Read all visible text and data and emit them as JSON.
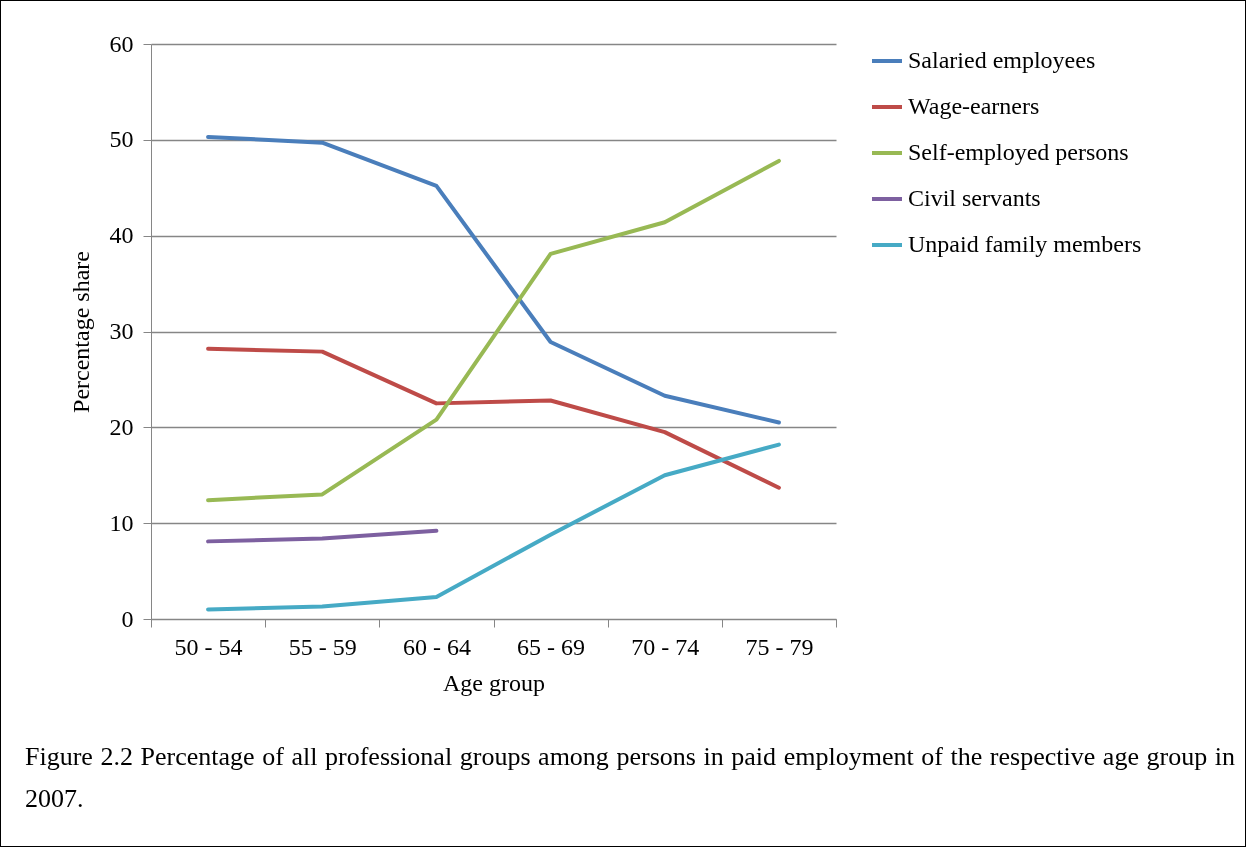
{
  "chart_data": {
    "type": "line",
    "xlabel": "Age group",
    "ylabel": "Percentage share",
    "categories": [
      "50 - 54",
      "55 - 59",
      "60 - 64",
      "65 - 69",
      "70 - 74",
      "75 - 79"
    ],
    "series": [
      {
        "name": "Salaried employees",
        "color": "#4a7ebb",
        "values": [
          50.3,
          49.7,
          45.2,
          28.9,
          23.3,
          20.5
        ]
      },
      {
        "name": "Wage-earners",
        "color": "#be4b48",
        "values": [
          28.2,
          27.9,
          22.5,
          22.8,
          19.5,
          13.7
        ]
      },
      {
        "name": "Self-employed persons",
        "color": "#98b954",
        "values": [
          12.4,
          13.0,
          20.8,
          38.1,
          41.4,
          47.8
        ]
      },
      {
        "name": "Civil servants",
        "color": "#7d60a0",
        "values": [
          8.1,
          8.4,
          9.2,
          null,
          null,
          null
        ]
      },
      {
        "name": "Unpaid family members",
        "color": "#46aac5",
        "values": [
          1.0,
          1.3,
          2.3,
          8.8,
          15.0,
          18.2
        ]
      }
    ],
    "ylim": [
      0,
      60
    ],
    "yticks": [
      0,
      10,
      20,
      30,
      40,
      50,
      60
    ],
    "grid": "y",
    "legend": "right",
    "marker": "none",
    "line_style": "solid",
    "annotations": [
      "Figure 2.2 Percentage of all professional groups among persons in paid employment of the respective age group in 2007."
    ]
  }
}
